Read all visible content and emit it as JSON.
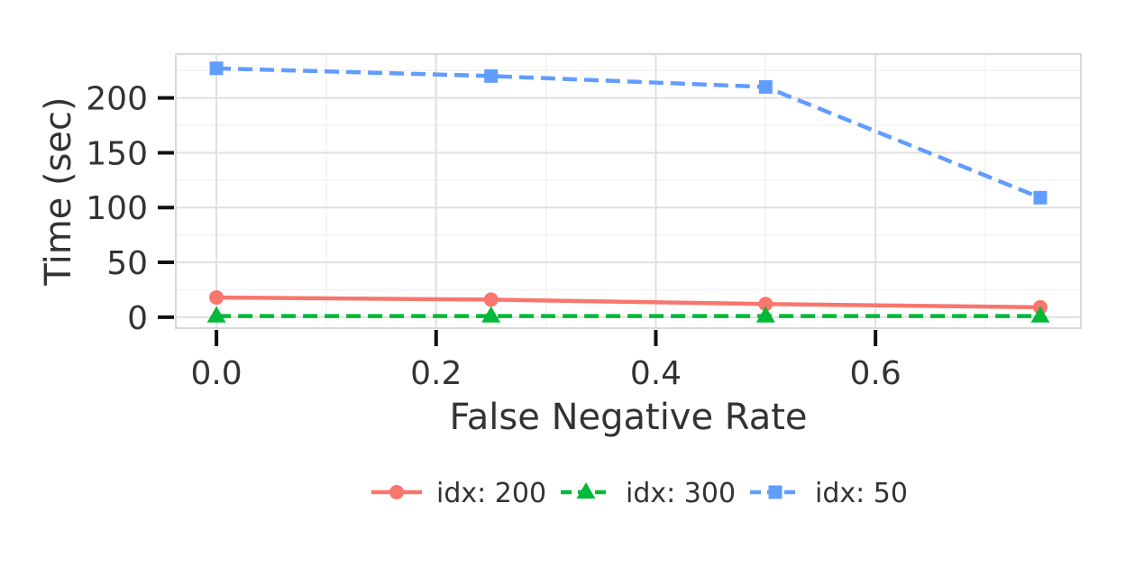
{
  "chart_data": {
    "type": "line",
    "title": "",
    "xlabel": "False Negative Rate",
    "ylabel": "Time (sec)",
    "xlim": [
      -0.037,
      0.787
    ],
    "ylim": [
      -10,
      240
    ],
    "x_ticks": [
      0.0,
      0.2,
      0.4,
      0.6
    ],
    "x_tick_labels": [
      "0.0",
      "0.2",
      "0.4",
      "0.6"
    ],
    "y_ticks": [
      0,
      50,
      100,
      150,
      200
    ],
    "y_tick_labels": [
      "0",
      "50",
      "100",
      "150",
      "200"
    ],
    "grid": true,
    "legend_position": "bottom",
    "x": [
      0.0,
      0.25,
      0.5,
      0.75
    ],
    "series": [
      {
        "name": "idx: 200",
        "values": [
          18,
          16,
          12,
          9
        ],
        "color": "#F8766D",
        "marker": "circle",
        "dash": "solid"
      },
      {
        "name": "idx: 300",
        "values": [
          1,
          1,
          1,
          1
        ],
        "color": "#00BA38",
        "marker": "triangle",
        "dash": "dashed"
      },
      {
        "name": "idx: 50",
        "values": [
          227,
          220,
          210,
          109
        ],
        "color": "#619CFF",
        "marker": "square",
        "dash": "dashed"
      }
    ]
  }
}
